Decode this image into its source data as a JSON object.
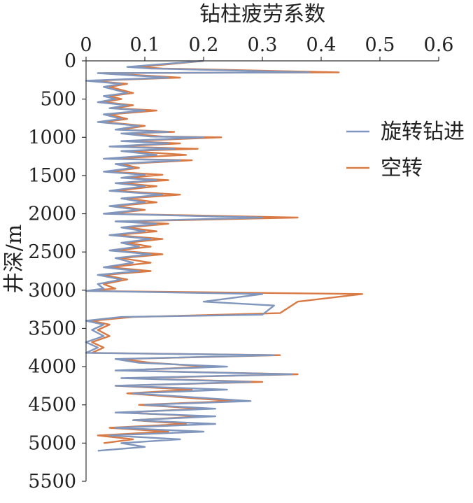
{
  "chart_data": {
    "type": "line",
    "orientation": "vertical-depth",
    "xlabel": "钻柱疲劳系数",
    "ylabel": "井深/m",
    "xlim": [
      0,
      0.6
    ],
    "ylim": [
      0,
      5500
    ],
    "y_inverted": true,
    "x_axis_position": "top",
    "x_ticks": [
      "0",
      "0.1",
      "0.2",
      "0.3",
      "0.4",
      "0.5",
      "0.6"
    ],
    "y_ticks": [
      "0",
      "500",
      "1000",
      "1500",
      "2000",
      "2500",
      "3000",
      "3500",
      "4000",
      "4500",
      "5000",
      "5500"
    ],
    "grid": false,
    "legend_position": "right",
    "series": [
      {
        "name": "旋转钻进",
        "color": "#8096bc",
        "points": [
          [
            0.2,
            0
          ],
          [
            0.07,
            80
          ],
          [
            0.11,
            100
          ],
          [
            0.38,
            150
          ],
          [
            0.02,
            160
          ],
          [
            0.14,
            220
          ],
          [
            0.0,
            260
          ],
          [
            0.06,
            300
          ],
          [
            0.03,
            340
          ],
          [
            0.07,
            420
          ],
          [
            0.03,
            460
          ],
          [
            0.05,
            500
          ],
          [
            0.02,
            540
          ],
          [
            0.07,
            580
          ],
          [
            0.04,
            620
          ],
          [
            0.1,
            650
          ],
          [
            0.03,
            700
          ],
          [
            0.06,
            760
          ],
          [
            0.02,
            800
          ],
          [
            0.09,
            850
          ],
          [
            0.05,
            900
          ],
          [
            0.14,
            930
          ],
          [
            0.06,
            950
          ],
          [
            0.11,
            990
          ],
          [
            0.2,
            1000
          ],
          [
            0.06,
            1050
          ],
          [
            0.14,
            1080
          ],
          [
            0.04,
            1120
          ],
          [
            0.15,
            1150
          ],
          [
            0.06,
            1180
          ],
          [
            0.12,
            1230
          ],
          [
            0.03,
            1280
          ],
          [
            0.16,
            1300
          ],
          [
            0.05,
            1350
          ],
          [
            0.08,
            1400
          ],
          [
            0.03,
            1450
          ],
          [
            0.1,
            1490
          ],
          [
            0.06,
            1530
          ],
          [
            0.12,
            1560
          ],
          [
            0.05,
            1600
          ],
          [
            0.1,
            1640
          ],
          [
            0.04,
            1700
          ],
          [
            0.13,
            1750
          ],
          [
            0.06,
            1800
          ],
          [
            0.1,
            1850
          ],
          [
            0.04,
            1900
          ],
          [
            0.09,
            1950
          ],
          [
            0.03,
            2000
          ],
          [
            0.3,
            2050
          ],
          [
            0.05,
            2100
          ],
          [
            0.12,
            2130
          ],
          [
            0.06,
            2180
          ],
          [
            0.1,
            2230
          ],
          [
            0.04,
            2280
          ],
          [
            0.11,
            2330
          ],
          [
            0.06,
            2380
          ],
          [
            0.09,
            2430
          ],
          [
            0.04,
            2480
          ],
          [
            0.11,
            2530
          ],
          [
            0.05,
            2580
          ],
          [
            0.08,
            2640
          ],
          [
            0.03,
            2700
          ],
          [
            0.09,
            2750
          ],
          [
            0.02,
            2800
          ],
          [
            0.06,
            2860
          ],
          [
            0.02,
            2920
          ],
          [
            0.03,
            2980
          ],
          [
            0.0,
            3010
          ],
          [
            0.3,
            3050
          ],
          [
            0.2,
            3150
          ],
          [
            0.32,
            3200
          ],
          [
            0.3,
            3320
          ],
          [
            0.06,
            3350
          ],
          [
            0.0,
            3400
          ],
          [
            0.03,
            3450
          ],
          [
            0.01,
            3520
          ],
          [
            0.03,
            3600
          ],
          [
            0.0,
            3680
          ],
          [
            0.02,
            3750
          ],
          [
            0.0,
            3820
          ],
          [
            0.32,
            3850
          ],
          [
            0.05,
            3900
          ],
          [
            0.09,
            3950
          ],
          [
            0.24,
            4000
          ],
          [
            0.05,
            4050
          ],
          [
            0.35,
            4100
          ],
          [
            0.06,
            4150
          ],
          [
            0.28,
            4200
          ],
          [
            0.05,
            4250
          ],
          [
            0.24,
            4300
          ],
          [
            0.08,
            4350
          ],
          [
            0.28,
            4450
          ],
          [
            0.1,
            4500
          ],
          [
            0.22,
            4550
          ],
          [
            0.05,
            4600
          ],
          [
            0.22,
            4650
          ],
          [
            0.08,
            4700
          ],
          [
            0.22,
            4750
          ],
          [
            0.05,
            4800
          ],
          [
            0.2,
            4850
          ],
          [
            0.04,
            4900
          ],
          [
            0.16,
            4950
          ],
          [
            0.06,
            5000
          ],
          [
            0.1,
            5050
          ],
          [
            0.02,
            5100
          ]
        ]
      },
      {
        "name": "空转",
        "color": "#d97a44",
        "points": [
          [
            0.2,
            0
          ],
          [
            0.09,
            80
          ],
          [
            0.13,
            100
          ],
          [
            0.43,
            150
          ],
          [
            0.03,
            160
          ],
          [
            0.16,
            220
          ],
          [
            0.01,
            260
          ],
          [
            0.07,
            300
          ],
          [
            0.04,
            340
          ],
          [
            0.08,
            420
          ],
          [
            0.04,
            460
          ],
          [
            0.06,
            500
          ],
          [
            0.03,
            540
          ],
          [
            0.08,
            580
          ],
          [
            0.05,
            620
          ],
          [
            0.12,
            650
          ],
          [
            0.04,
            700
          ],
          [
            0.07,
            760
          ],
          [
            0.03,
            800
          ],
          [
            0.1,
            850
          ],
          [
            0.06,
            900
          ],
          [
            0.15,
            930
          ],
          [
            0.07,
            950
          ],
          [
            0.13,
            990
          ],
          [
            0.23,
            1000
          ],
          [
            0.07,
            1050
          ],
          [
            0.16,
            1080
          ],
          [
            0.05,
            1120
          ],
          [
            0.19,
            1150
          ],
          [
            0.07,
            1180
          ],
          [
            0.17,
            1230
          ],
          [
            0.04,
            1280
          ],
          [
            0.18,
            1300
          ],
          [
            0.06,
            1350
          ],
          [
            0.09,
            1400
          ],
          [
            0.04,
            1450
          ],
          [
            0.13,
            1490
          ],
          [
            0.07,
            1530
          ],
          [
            0.14,
            1560
          ],
          [
            0.06,
            1600
          ],
          [
            0.12,
            1640
          ],
          [
            0.05,
            1700
          ],
          [
            0.16,
            1750
          ],
          [
            0.07,
            1800
          ],
          [
            0.12,
            1850
          ],
          [
            0.05,
            1900
          ],
          [
            0.1,
            1950
          ],
          [
            0.04,
            2000
          ],
          [
            0.36,
            2050
          ],
          [
            0.06,
            2100
          ],
          [
            0.14,
            2130
          ],
          [
            0.07,
            2180
          ],
          [
            0.12,
            2230
          ],
          [
            0.05,
            2280
          ],
          [
            0.13,
            2330
          ],
          [
            0.07,
            2380
          ],
          [
            0.11,
            2430
          ],
          [
            0.05,
            2480
          ],
          [
            0.13,
            2530
          ],
          [
            0.06,
            2580
          ],
          [
            0.11,
            2640
          ],
          [
            0.04,
            2700
          ],
          [
            0.11,
            2750
          ],
          [
            0.03,
            2800
          ],
          [
            0.07,
            2860
          ],
          [
            0.03,
            2920
          ],
          [
            0.05,
            2980
          ],
          [
            0.0,
            3010
          ],
          [
            0.47,
            3050
          ],
          [
            0.36,
            3150
          ],
          [
            0.33,
            3300
          ],
          [
            0.08,
            3350
          ],
          [
            0.01,
            3400
          ],
          [
            0.04,
            3450
          ],
          [
            0.02,
            3520
          ],
          [
            0.04,
            3600
          ],
          [
            0.01,
            3680
          ],
          [
            0.03,
            3750
          ],
          [
            0.01,
            3820
          ],
          [
            0.33,
            3850
          ],
          [
            0.06,
            3900
          ],
          [
            0.11,
            3950
          ],
          [
            0.21,
            4000
          ],
          [
            0.06,
            4050
          ],
          [
            0.36,
            4100
          ],
          [
            0.07,
            4150
          ],
          [
            0.3,
            4200
          ],
          [
            0.05,
            4250
          ],
          [
            0.18,
            4300
          ],
          [
            0.07,
            4350
          ],
          [
            0.25,
            4450
          ],
          [
            0.09,
            4500
          ],
          [
            0.2,
            4550
          ],
          [
            0.06,
            4600
          ],
          [
            0.2,
            4650
          ],
          [
            0.08,
            4700
          ],
          [
            0.17,
            4750
          ],
          [
            0.04,
            4800
          ],
          [
            0.14,
            4850
          ],
          [
            0.02,
            4900
          ],
          [
            0.08,
            4950
          ],
          [
            0.03,
            5000
          ]
        ]
      }
    ]
  }
}
